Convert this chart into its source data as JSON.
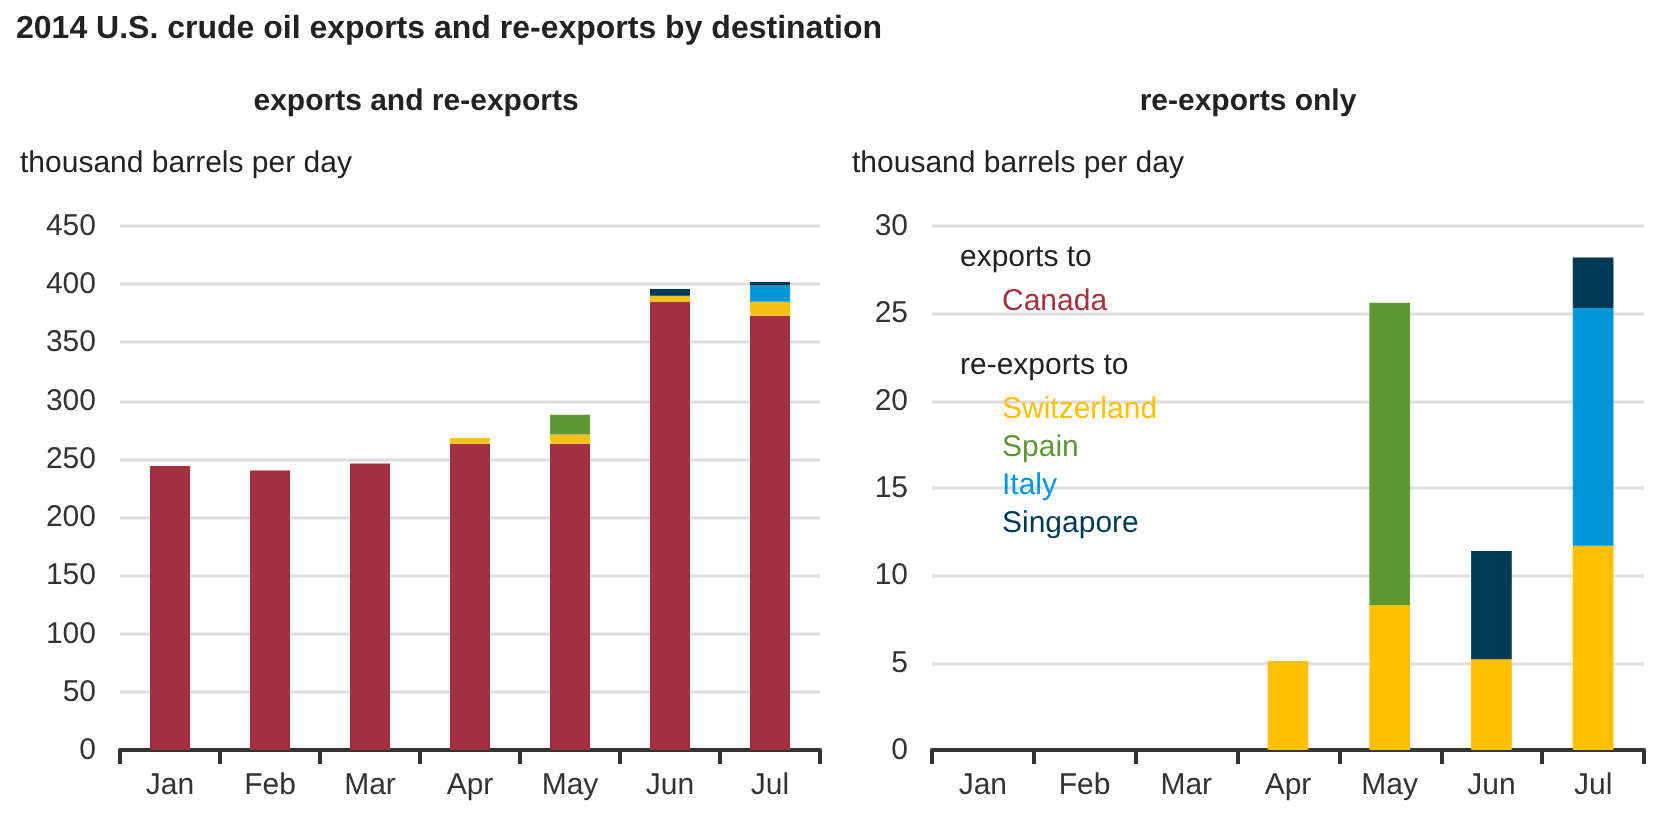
{
  "chart_data": [
    {
      "type": "bar",
      "title": "2014 U.S. crude oil exports and re-exports by destination",
      "subtitle": "exports and re-exports",
      "ylabel": "thousand barrels per day",
      "categories": [
        "Jan",
        "Feb",
        "Mar",
        "Apr",
        "May",
        "Jun",
        "Jul"
      ],
      "stacked": true,
      "ylim": [
        0,
        450
      ],
      "yticks": [
        0,
        50,
        100,
        150,
        200,
        250,
        300,
        350,
        400,
        450
      ],
      "grid": "y",
      "legend": false,
      "series": [
        {
          "color": "#a3313f",
          "values": [
            244,
            240,
            246,
            263,
            263,
            385,
            373
          ]
        },
        {
          "color": "#f5c116",
          "values": [
            null,
            null,
            null,
            5,
            8,
            5,
            12
          ]
        },
        {
          "color": "#5f9735",
          "values": [
            null,
            null,
            null,
            null,
            17,
            null,
            null
          ]
        },
        {
          "color": "#0096d7",
          "values": [
            null,
            null,
            null,
            null,
            null,
            null,
            14
          ]
        },
        {
          "color": "#003953",
          "values": [
            null,
            null,
            null,
            null,
            null,
            6,
            3
          ]
        }
      ]
    },
    {
      "type": "bar",
      "title": "re-exports only",
      "ylabel": "thousand barrels per day",
      "categories": [
        "Jan",
        "Feb",
        "Mar",
        "Apr",
        "May",
        "Jun",
        "Jul"
      ],
      "stacked": true,
      "ylim": [
        0,
        30
      ],
      "yticks": [
        0,
        5,
        10,
        15,
        20,
        25,
        30
      ],
      "grid": "y",
      "legend": "top left",
      "annotations": [
        "exports to",
        "re-exports to"
      ],
      "series": [
        {
          "name": "Canada",
          "color": "#a3313f",
          "values": [
            null,
            null,
            null,
            null,
            null,
            null,
            null
          ]
        },
        {
          "name": "Switzerland",
          "color": "#ffc000",
          "values": [
            null,
            null,
            null,
            5.1,
            8.3,
            5.2,
            11.7
          ]
        },
        {
          "name": "Spain",
          "color": "#5f9735",
          "values": [
            null,
            null,
            null,
            null,
            17.3,
            null,
            null
          ]
        },
        {
          "name": "Italy",
          "color": "#0096d7",
          "values": [
            null,
            null,
            null,
            null,
            null,
            null,
            13.6
          ]
        },
        {
          "name": "Singapore",
          "color": "#003953",
          "values": [
            null,
            null,
            null,
            null,
            null,
            6.2,
            2.9
          ]
        }
      ]
    }
  ]
}
